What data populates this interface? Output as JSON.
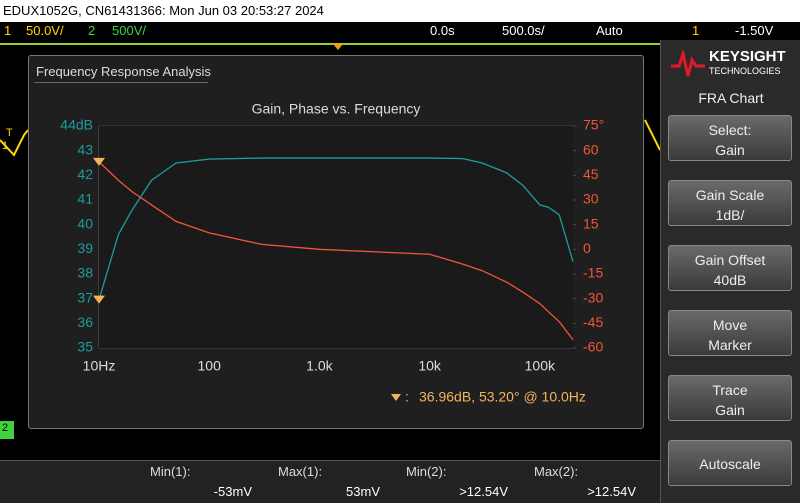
{
  "header": {
    "title": "EDUX1052G, CN61431366: Mon Jun 03 20:53:27 2024"
  },
  "status_bar": {
    "ch1_label": "1",
    "ch1_scale": "50.0V/",
    "ch2_label": "2",
    "ch2_scale": "500V/",
    "time_offset": "0.0s",
    "time_scale": "500.0s/",
    "trigger_mode": "Auto",
    "trigger_source": "1",
    "trigger_level": "-1.50V"
  },
  "left_markers": {
    "trigger": "T",
    "ch1": "1",
    "ch2": "2"
  },
  "dialog": {
    "title": "Frequency Response Analysis",
    "marker_readout": "36.96dB, 53.20° @ 10.0Hz"
  },
  "chart_data": {
    "type": "line",
    "title": "Gain, Phase vs. Frequency",
    "log_x": true,
    "grid": true,
    "minor_grid": true,
    "marker_color": "#f5b35c",
    "x": [
      10,
      15,
      20,
      30,
      50,
      100,
      300,
      1000,
      10000,
      20000,
      30000,
      50000,
      70000,
      100000,
      120000,
      150000,
      200000
    ],
    "xlim": [
      10,
      200000
    ],
    "xticks": [
      {
        "value": 10,
        "label": "10Hz"
      },
      100,
      {
        "value": 1000,
        "label": "1.0k"
      },
      {
        "value": 10000,
        "label": "10k"
      },
      {
        "value": 100000,
        "label": "100k"
      }
    ],
    "ylim": [
      35,
      44
    ],
    "yticks": [
      {
        "value": 44,
        "label": "44dB"
      },
      43,
      42,
      41,
      40,
      39,
      38,
      37,
      36,
      35
    ],
    "y2lim": [
      -60,
      75
    ],
    "y2ticks": [
      {
        "value": 75,
        "label": "75°"
      },
      60,
      45,
      30,
      15,
      0,
      -15,
      -30,
      -45,
      -60
    ],
    "series": [
      {
        "name": "Gain",
        "color": "#1e9c9c",
        "values": [
          36.96,
          39.6,
          40.6,
          41.8,
          42.5,
          42.66,
          42.7,
          42.7,
          42.7,
          42.68,
          42.5,
          42.1,
          41.6,
          40.8,
          40.7,
          40.4,
          38.5
        ]
      },
      {
        "name": "Phase",
        "color": "#f2553a",
        "axis": "y2",
        "values": [
          53.2,
          42,
          35,
          27,
          17,
          10,
          3,
          0,
          -3,
          -9,
          -13,
          -20,
          -26,
          -33,
          -38,
          -44,
          -55
        ]
      }
    ]
  },
  "side_panel": {
    "brand": "KEYSIGHT",
    "brand_sub": "TECHNOLOGIES",
    "menu_title": "FRA Chart",
    "softkeys": [
      {
        "label": "Select:",
        "value": "Gain"
      },
      {
        "label": "Gain Scale",
        "value": "1dB/"
      },
      {
        "label": "Gain Offset",
        "value": "40dB"
      },
      {
        "label": "Move",
        "value": "Marker"
      },
      {
        "label": "Trace",
        "value": "Gain"
      },
      {
        "label": "Autoscale"
      }
    ]
  },
  "measurements": [
    {
      "label": "Min(1):",
      "value": "-53mV"
    },
    {
      "label": "Max(1):",
      "value": "53mV"
    },
    {
      "label": "Min(2):",
      "value": ">12.54V"
    },
    {
      "label": "Max(2):",
      "value": ">12.54V"
    }
  ]
}
